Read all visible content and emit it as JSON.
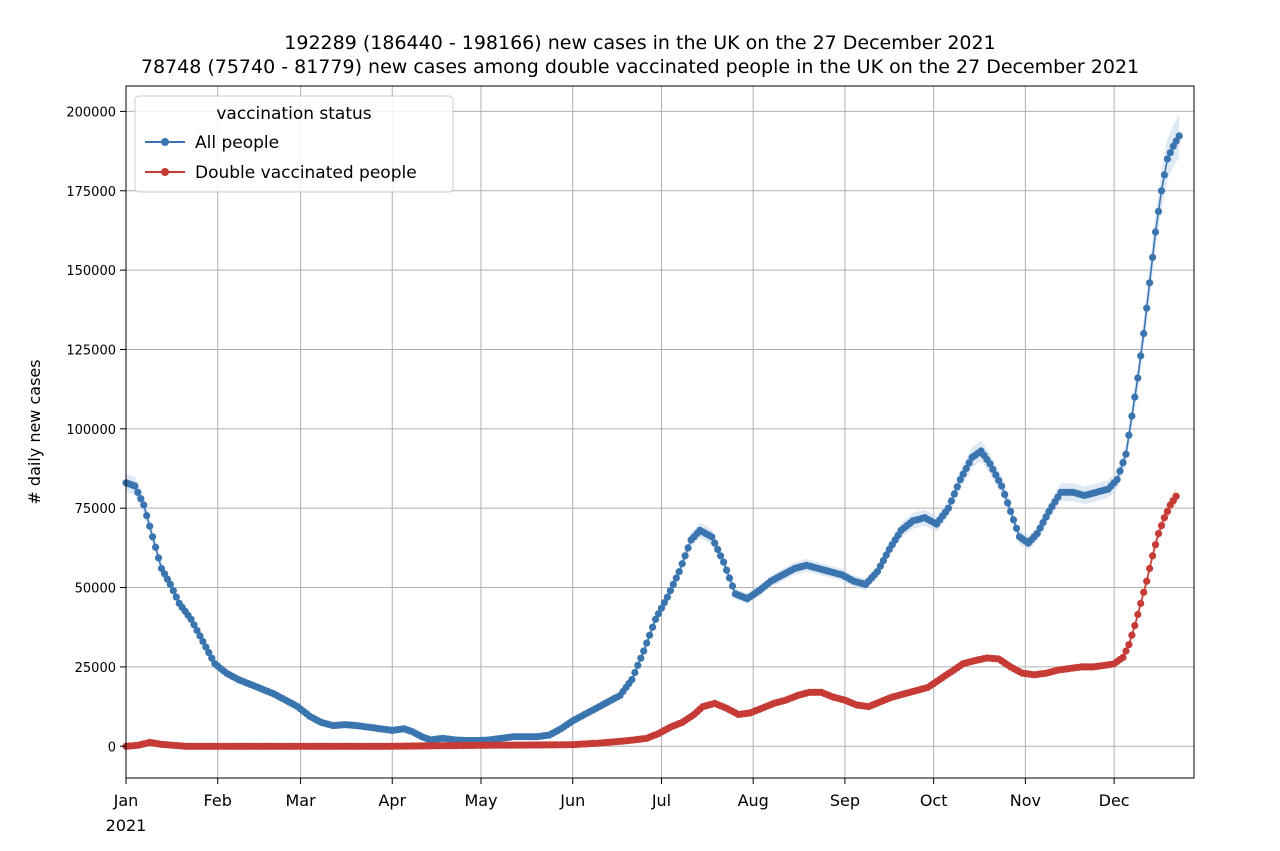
{
  "chart_data": {
    "type": "line",
    "title_line1": "192289 (186440 - 198166) new cases in the UK on the 27 December 2021",
    "title_line2": "78748 (75740 - 81779) new cases among double vaccinated people in the UK on the 27 December 2021",
    "xlabel": "",
    "ylabel": "# daily new cases",
    "year_label": "2021",
    "ylim": [
      -10000,
      208000
    ],
    "yticks": [
      0,
      25000,
      50000,
      75000,
      100000,
      125000,
      150000,
      175000,
      200000
    ],
    "ytick_labels": [
      "0",
      "25000",
      "50000",
      "75000",
      "100000",
      "125000",
      "150000",
      "175000",
      "200000"
    ],
    "xlim_days": [
      0,
      361
    ],
    "month_ticks": [
      {
        "label": "Jan",
        "day": 0
      },
      {
        "label": "Feb",
        "day": 31
      },
      {
        "label": "Mar",
        "day": 59
      },
      {
        "label": "Apr",
        "day": 90
      },
      {
        "label": "May",
        "day": 120
      },
      {
        "label": "Jun",
        "day": 151
      },
      {
        "label": "Jul",
        "day": 181
      },
      {
        "label": "Aug",
        "day": 212
      },
      {
        "label": "Sep",
        "day": 243
      },
      {
        "label": "Oct",
        "day": 273
      },
      {
        "label": "Nov",
        "day": 304
      },
      {
        "label": "Dec",
        "day": 334
      }
    ],
    "grid": true,
    "legend": {
      "title": "vaccination status",
      "position": "upper-left"
    },
    "series": [
      {
        "name": "All people",
        "color": "#3b75af",
        "band_color": "#c9daee",
        "knots": [
          [
            0,
            83000
          ],
          [
            3,
            82000
          ],
          [
            6,
            76000
          ],
          [
            9,
            66000
          ],
          [
            12,
            56000
          ],
          [
            15,
            51000
          ],
          [
            18,
            45000
          ],
          [
            22,
            40000
          ],
          [
            26,
            33000
          ],
          [
            30,
            26000
          ],
          [
            34,
            23000
          ],
          [
            38,
            21000
          ],
          [
            42,
            19500
          ],
          [
            46,
            18000
          ],
          [
            50,
            16500
          ],
          [
            54,
            14500
          ],
          [
            58,
            12500
          ],
          [
            62,
            9500
          ],
          [
            66,
            7500
          ],
          [
            70,
            6500
          ],
          [
            74,
            6800
          ],
          [
            78,
            6500
          ],
          [
            82,
            6000
          ],
          [
            86,
            5500
          ],
          [
            90,
            5000
          ],
          [
            94,
            5500
          ],
          [
            97,
            4500
          ],
          [
            100,
            3000
          ],
          [
            103,
            2000
          ],
          [
            107,
            2500
          ],
          [
            111,
            2000
          ],
          [
            115,
            1800
          ],
          [
            119,
            1800
          ],
          [
            123,
            2000
          ],
          [
            127,
            2500
          ],
          [
            131,
            3000
          ],
          [
            135,
            3000
          ],
          [
            139,
            3000
          ],
          [
            143,
            3500
          ],
          [
            147,
            5500
          ],
          [
            151,
            8000
          ],
          [
            155,
            10000
          ],
          [
            159,
            12000
          ],
          [
            163,
            14000
          ],
          [
            167,
            16000
          ],
          [
            171,
            21000
          ],
          [
            175,
            30000
          ],
          [
            179,
            40000
          ],
          [
            183,
            47000
          ],
          [
            187,
            55000
          ],
          [
            191,
            65000
          ],
          [
            194,
            68000
          ],
          [
            198,
            66000
          ],
          [
            202,
            58000
          ],
          [
            206,
            48000
          ],
          [
            210,
            46500
          ],
          [
            214,
            49000
          ],
          [
            218,
            52000
          ],
          [
            222,
            54000
          ],
          [
            226,
            56000
          ],
          [
            230,
            57000
          ],
          [
            234,
            56000
          ],
          [
            238,
            55000
          ],
          [
            242,
            54000
          ],
          [
            246,
            52000
          ],
          [
            250,
            51000
          ],
          [
            254,
            55000
          ],
          [
            258,
            62000
          ],
          [
            262,
            68000
          ],
          [
            266,
            71000
          ],
          [
            270,
            72000
          ],
          [
            274,
            70000
          ],
          [
            278,
            75000
          ],
          [
            282,
            84000
          ],
          [
            286,
            91000
          ],
          [
            289,
            93000
          ],
          [
            292,
            89000
          ],
          [
            296,
            82000
          ],
          [
            299,
            74000
          ],
          [
            302,
            66000
          ],
          [
            305,
            64000
          ],
          [
            308,
            67000
          ],
          [
            312,
            74000
          ],
          [
            316,
            80000
          ],
          [
            320,
            80000
          ],
          [
            324,
            79000
          ],
          [
            328,
            80000
          ],
          [
            332,
            81000
          ],
          [
            335,
            84000
          ],
          [
            338,
            92000
          ],
          [
            340,
            104000
          ],
          [
            342,
            116000
          ],
          [
            344,
            130000
          ],
          [
            346,
            146000
          ],
          [
            348,
            162000
          ],
          [
            350,
            175000
          ],
          [
            352,
            185000
          ],
          [
            354,
            189000
          ],
          [
            356,
            192289
          ]
        ]
      },
      {
        "name": "Double vaccinated people",
        "color": "#c63b36",
        "band_color": "#f0c9c6",
        "knots": [
          [
            0,
            0
          ],
          [
            4,
            300
          ],
          [
            8,
            1200
          ],
          [
            12,
            600
          ],
          [
            16,
            300
          ],
          [
            20,
            0
          ],
          [
            90,
            0
          ],
          [
            120,
            300
          ],
          [
            140,
            400
          ],
          [
            151,
            500
          ],
          [
            160,
            1000
          ],
          [
            170,
            1800
          ],
          [
            176,
            2500
          ],
          [
            180,
            4000
          ],
          [
            184,
            6000
          ],
          [
            188,
            7500
          ],
          [
            192,
            10000
          ],
          [
            195,
            12500
          ],
          [
            199,
            13500
          ],
          [
            203,
            12000
          ],
          [
            207,
            10000
          ],
          [
            211,
            10500
          ],
          [
            215,
            12000
          ],
          [
            219,
            13500
          ],
          [
            223,
            14500
          ],
          [
            227,
            16000
          ],
          [
            231,
            17000
          ],
          [
            235,
            17000
          ],
          [
            239,
            15500
          ],
          [
            243,
            14500
          ],
          [
            247,
            13000
          ],
          [
            251,
            12500
          ],
          [
            255,
            14000
          ],
          [
            259,
            15500
          ],
          [
            263,
            16500
          ],
          [
            267,
            17500
          ],
          [
            271,
            18500
          ],
          [
            275,
            21000
          ],
          [
            279,
            23500
          ],
          [
            283,
            26000
          ],
          [
            287,
            27000
          ],
          [
            291,
            27800
          ],
          [
            295,
            27500
          ],
          [
            299,
            25000
          ],
          [
            303,
            23000
          ],
          [
            307,
            22500
          ],
          [
            311,
            23000
          ],
          [
            315,
            24000
          ],
          [
            319,
            24500
          ],
          [
            323,
            25000
          ],
          [
            327,
            25000
          ],
          [
            331,
            25500
          ],
          [
            334,
            26000
          ],
          [
            337,
            28000
          ],
          [
            339,
            32000
          ],
          [
            341,
            38000
          ],
          [
            343,
            45000
          ],
          [
            345,
            52000
          ],
          [
            347,
            60000
          ],
          [
            349,
            67000
          ],
          [
            351,
            72000
          ],
          [
            353,
            76000
          ],
          [
            355,
            78748
          ]
        ]
      }
    ]
  }
}
